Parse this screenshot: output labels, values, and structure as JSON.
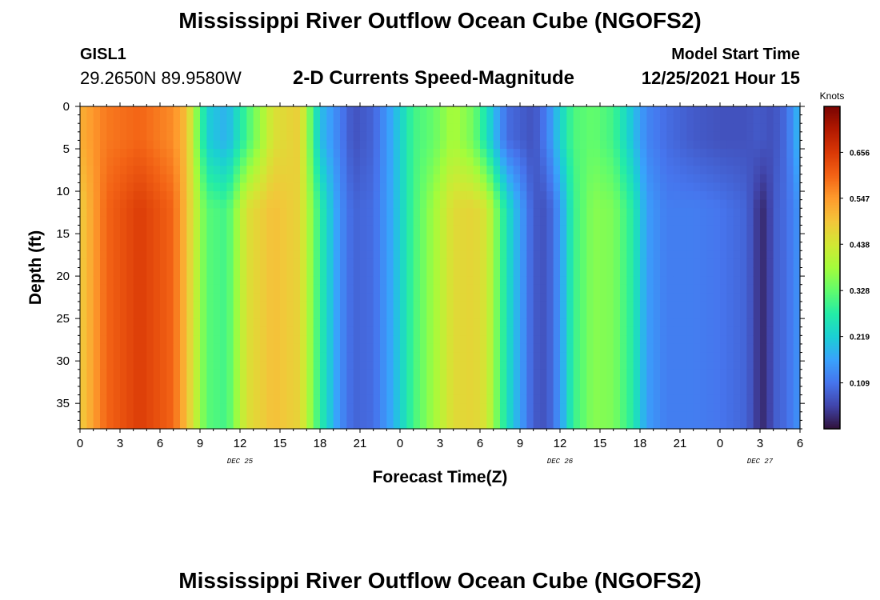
{
  "header": {
    "title": "Mississippi River Outflow Ocean Cube (NGOFS2)",
    "station_id": "GISL1",
    "station_coords": "29.2650N  89.9580W",
    "subtitle": "2-D Currents Speed-Magnitude",
    "model_start_label": "Model Start Time",
    "model_start_value": "12/25/2021 Hour 15"
  },
  "footer": {
    "title": "Mississippi River Outflow Ocean Cube (NGOFS2)"
  },
  "chart_data": {
    "type": "heatmap",
    "title": "2-D Currents Speed-Magnitude",
    "xlabel": "Forecast Time(Z)",
    "ylabel": "Depth (ft)",
    "x_tick_labels": [
      "0",
      "3",
      "6",
      "9",
      "12",
      "15",
      "18",
      "21",
      "0",
      "3",
      "6",
      "9",
      "12",
      "15",
      "18",
      "21",
      "0",
      "3",
      "6"
    ],
    "x_range_hours": [
      0,
      54
    ],
    "date_labels": [
      {
        "label": "DEC 25",
        "hour": 12
      },
      {
        "label": "DEC 26",
        "hour": 36
      },
      {
        "label": "DEC 27",
        "hour": 51
      }
    ],
    "y_tick_labels": [
      "0",
      "5",
      "10",
      "15",
      "20",
      "25",
      "30",
      "35"
    ],
    "y_range": [
      0,
      38
    ],
    "y_inverted": true,
    "colorbar": {
      "title": "Knots",
      "range": [
        0,
        0.765
      ],
      "tick_labels": [
        "0.109",
        "0.219",
        "0.328",
        "0.438",
        "0.547",
        "0.656"
      ],
      "colors": [
        "#30123b",
        "#4145ab",
        "#4675ed",
        "#39a2fc",
        "#1bcfd4",
        "#24eca6",
        "#61fc6c",
        "#a4fc3b",
        "#d1e834",
        "#f3c63a",
        "#fe9b2d",
        "#f36315",
        "#d93806",
        "#b11901",
        "#7a0402"
      ]
    },
    "speed_profile": {
      "hours": [
        0,
        2,
        4.5,
        7,
        8,
        9.5,
        11,
        12.5,
        14.5,
        16.5,
        18,
        19.5,
        20.5,
        22,
        23.5,
        25,
        26.5,
        28,
        29.5,
        30.5,
        32,
        34,
        35,
        36,
        37,
        38.5,
        40,
        41.5,
        42.5,
        44,
        46,
        48,
        50,
        51,
        51.5,
        52,
        53,
        54
      ],
      "shallow_knots": [
        0.52,
        0.58,
        0.6,
        0.56,
        0.5,
        0.22,
        0.18,
        0.3,
        0.45,
        0.48,
        0.2,
        0.12,
        0.07,
        0.09,
        0.18,
        0.3,
        0.33,
        0.39,
        0.34,
        0.25,
        0.1,
        0.07,
        0.12,
        0.22,
        0.31,
        0.33,
        0.3,
        0.2,
        0.13,
        0.1,
        0.08,
        0.07,
        0.07,
        0.08,
        0.07,
        0.07,
        0.1,
        0.2
      ],
      "deep_knots": [
        0.48,
        0.6,
        0.65,
        0.6,
        0.5,
        0.32,
        0.3,
        0.45,
        0.5,
        0.47,
        0.28,
        0.14,
        0.09,
        0.1,
        0.18,
        0.3,
        0.38,
        0.46,
        0.47,
        0.44,
        0.25,
        0.08,
        0.07,
        0.15,
        0.29,
        0.36,
        0.35,
        0.27,
        0.16,
        0.12,
        0.12,
        0.11,
        0.09,
        0.03,
        0.03,
        0.08,
        0.1,
        0.15
      ]
    }
  }
}
